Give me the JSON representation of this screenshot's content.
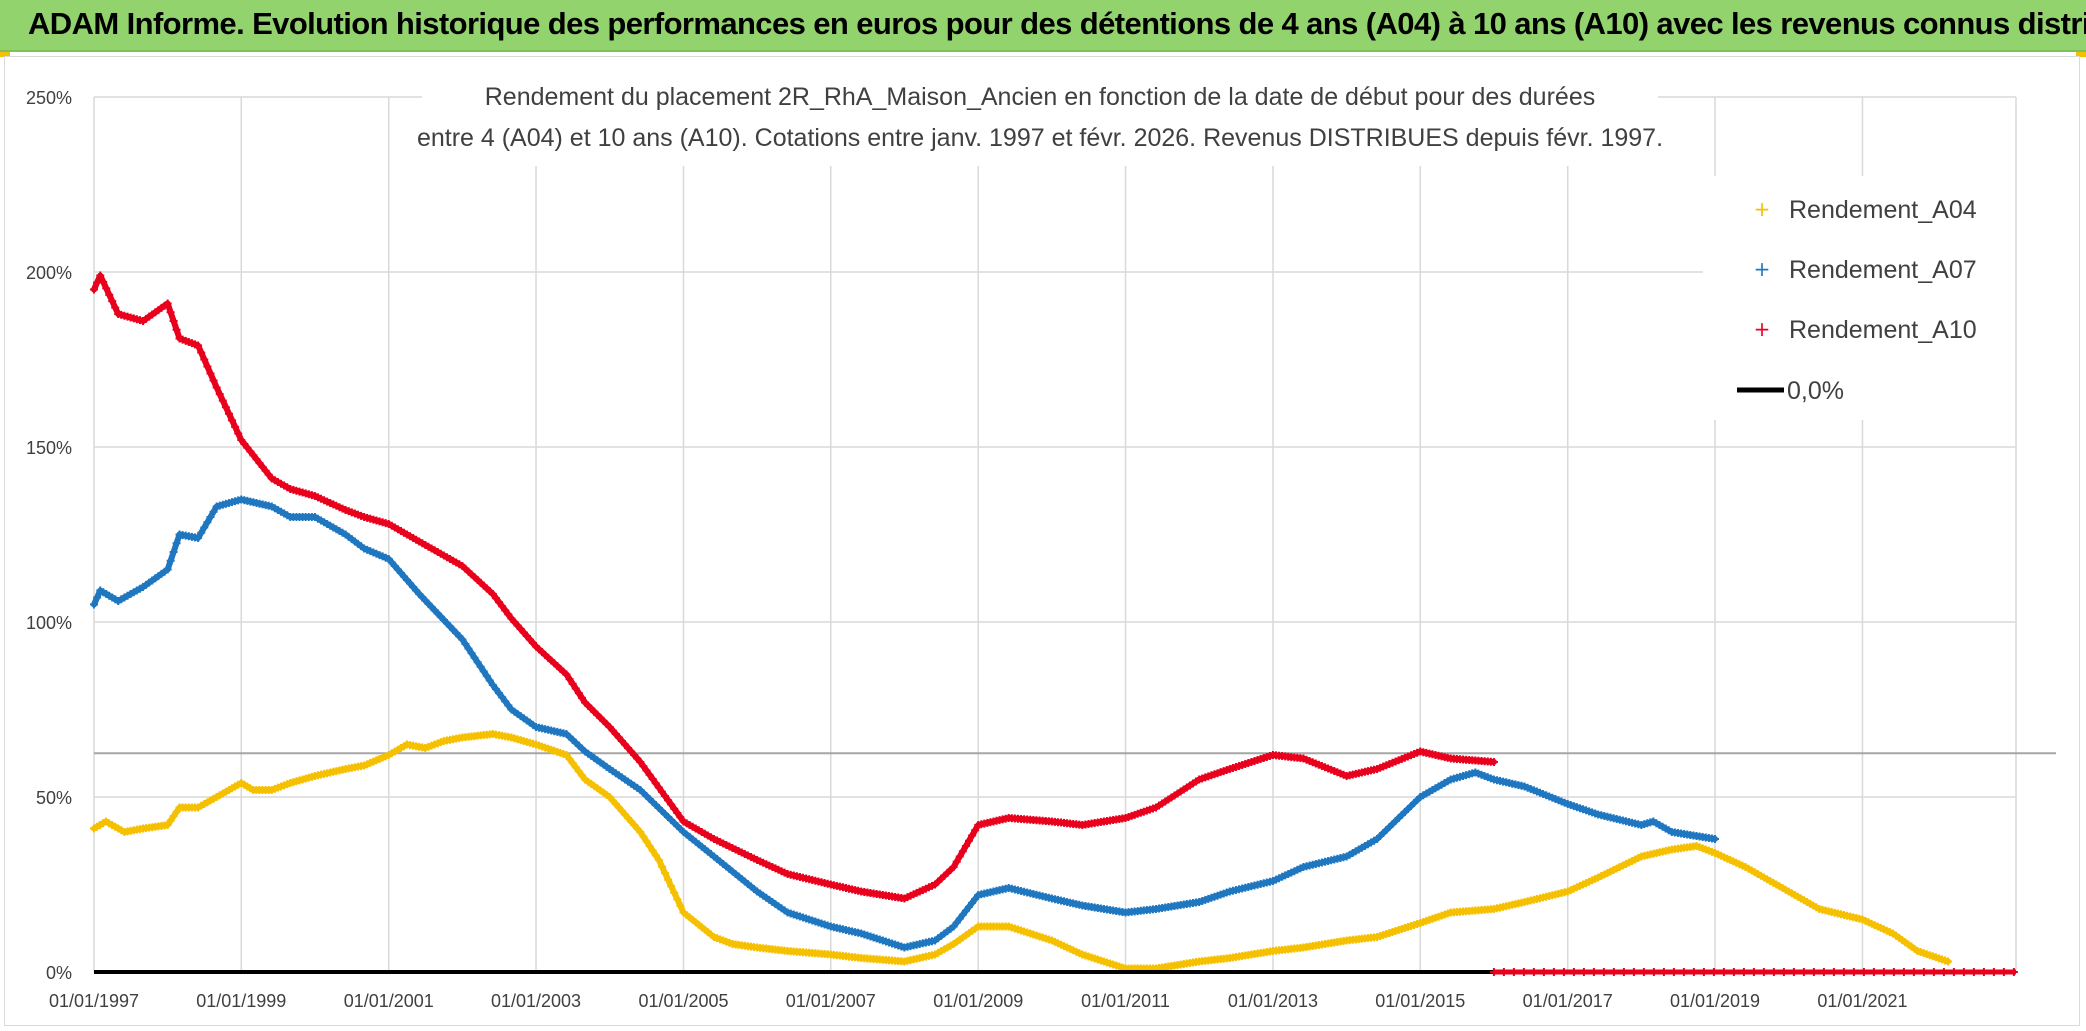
{
  "banner": {
    "title": "ADAM Informe. Evolution historique des performances en euros pour des détentions de 4 ans (A04) à 10 ans (A10) avec les revenus connus distribués",
    "background": "#92d36e"
  },
  "chart_data": {
    "type": "scatter",
    "subtitle_lines": [
      "Rendement du placement 2R_RhA_Maison_Ancien en fonction de la date de début pour des durées",
      "entre 4 (A04) et 10 ans (A10). Cotations entre janv. 1997 et févr. 2026. Revenus DISTRIBUES depuis févr. 1997."
    ],
    "x_ticks": [
      "01/01/1997",
      "01/01/1999",
      "01/01/2001",
      "01/01/2003",
      "01/01/2005",
      "01/01/2007",
      "01/01/2009",
      "01/01/2011",
      "01/01/2013",
      "01/01/2015",
      "01/01/2017",
      "01/01/2019",
      "01/01/2021"
    ],
    "y_ticks": [
      "0%",
      "50%",
      "100%",
      "150%",
      "200%",
      "250%"
    ],
    "xlim": [
      "1997-01-01",
      "2023-02-01"
    ],
    "ylim": [
      0,
      250
    ],
    "grid": true,
    "legend_position": "top-right",
    "series": [
      {
        "name": "Rendement_A04",
        "color": "#f5c000",
        "marker": "+",
        "points": [
          [
            "1997-01-01",
            41
          ],
          [
            "1997-03-01",
            43
          ],
          [
            "1997-06-01",
            40
          ],
          [
            "1997-09-01",
            41
          ],
          [
            "1998-01-01",
            42
          ],
          [
            "1998-03-01",
            47
          ],
          [
            "1998-06-01",
            47
          ],
          [
            "1998-09-01",
            50
          ],
          [
            "1999-01-01",
            54
          ],
          [
            "1999-03-01",
            52
          ],
          [
            "1999-06-01",
            52
          ],
          [
            "1999-09-01",
            54
          ],
          [
            "2000-01-01",
            56
          ],
          [
            "2000-06-01",
            58
          ],
          [
            "2000-09-01",
            59
          ],
          [
            "2001-01-01",
            62
          ],
          [
            "2001-04-01",
            65
          ],
          [
            "2001-07-01",
            64
          ],
          [
            "2001-10-01",
            66
          ],
          [
            "2002-01-01",
            67
          ],
          [
            "2002-06-01",
            68
          ],
          [
            "2002-09-01",
            67
          ],
          [
            "2003-01-01",
            65
          ],
          [
            "2003-06-01",
            62
          ],
          [
            "2003-09-01",
            55
          ],
          [
            "2004-01-01",
            50
          ],
          [
            "2004-06-01",
            40
          ],
          [
            "2004-09-01",
            32
          ],
          [
            "2005-01-01",
            17
          ],
          [
            "2005-06-01",
            10
          ],
          [
            "2005-09-01",
            8
          ],
          [
            "2006-01-01",
            7
          ],
          [
            "2006-06-01",
            6
          ],
          [
            "2007-01-01",
            5
          ],
          [
            "2007-06-01",
            4
          ],
          [
            "2008-01-01",
            3
          ],
          [
            "2008-06-01",
            5
          ],
          [
            "2008-09-01",
            8
          ],
          [
            "2009-01-01",
            13
          ],
          [
            "2009-06-01",
            13
          ],
          [
            "2010-01-01",
            9
          ],
          [
            "2010-06-01",
            5
          ],
          [
            "2011-01-01",
            1
          ],
          [
            "2011-06-01",
            1
          ],
          [
            "2012-01-01",
            3
          ],
          [
            "2012-06-01",
            4
          ],
          [
            "2013-01-01",
            6
          ],
          [
            "2013-06-01",
            7
          ],
          [
            "2014-01-01",
            9
          ],
          [
            "2014-06-01",
            10
          ],
          [
            "2015-01-01",
            14
          ],
          [
            "2015-06-01",
            17
          ],
          [
            "2016-01-01",
            18
          ],
          [
            "2016-06-01",
            20
          ],
          [
            "2017-01-01",
            23
          ],
          [
            "2017-06-01",
            27
          ],
          [
            "2018-01-01",
            33
          ],
          [
            "2018-06-01",
            35
          ],
          [
            "2018-10-01",
            36
          ],
          [
            "2019-01-01",
            34
          ],
          [
            "2019-06-01",
            30
          ],
          [
            "2020-01-01",
            23
          ],
          [
            "2020-06-01",
            18
          ],
          [
            "2021-01-01",
            15
          ],
          [
            "2021-06-01",
            11
          ],
          [
            "2021-10-01",
            6
          ],
          [
            "2022-03-01",
            3
          ]
        ]
      },
      {
        "name": "Rendement_A07",
        "color": "#1f77c0",
        "marker": "+",
        "points": [
          [
            "1997-01-01",
            105
          ],
          [
            "1997-02-01",
            109
          ],
          [
            "1997-05-01",
            106
          ],
          [
            "1997-09-01",
            110
          ],
          [
            "1998-01-01",
            115
          ],
          [
            "1998-03-01",
            125
          ],
          [
            "1998-06-01",
            124
          ],
          [
            "1998-09-01",
            133
          ],
          [
            "1999-01-01",
            135
          ],
          [
            "1999-06-01",
            133
          ],
          [
            "1999-09-01",
            130
          ],
          [
            "2000-01-01",
            130
          ],
          [
            "2000-06-01",
            125
          ],
          [
            "2000-09-01",
            121
          ],
          [
            "2001-01-01",
            118
          ],
          [
            "2001-06-01",
            108
          ],
          [
            "2002-01-01",
            95
          ],
          [
            "2002-06-01",
            82
          ],
          [
            "2002-09-01",
            75
          ],
          [
            "2003-01-01",
            70
          ],
          [
            "2003-06-01",
            68
          ],
          [
            "2003-09-01",
            63
          ],
          [
            "2004-01-01",
            58
          ],
          [
            "2004-06-01",
            52
          ],
          [
            "2005-01-01",
            40
          ],
          [
            "2005-06-01",
            33
          ],
          [
            "2006-01-01",
            23
          ],
          [
            "2006-06-01",
            17
          ],
          [
            "2007-01-01",
            13
          ],
          [
            "2007-06-01",
            11
          ],
          [
            "2008-01-01",
            7
          ],
          [
            "2008-06-01",
            9
          ],
          [
            "2008-09-01",
            13
          ],
          [
            "2009-01-01",
            22
          ],
          [
            "2009-06-01",
            24
          ],
          [
            "2010-01-01",
            21
          ],
          [
            "2010-06-01",
            19
          ],
          [
            "2011-01-01",
            17
          ],
          [
            "2011-06-01",
            18
          ],
          [
            "2012-01-01",
            20
          ],
          [
            "2012-06-01",
            23
          ],
          [
            "2013-01-01",
            26
          ],
          [
            "2013-06-01",
            30
          ],
          [
            "2014-01-01",
            33
          ],
          [
            "2014-06-01",
            38
          ],
          [
            "2015-01-01",
            50
          ],
          [
            "2015-06-01",
            55
          ],
          [
            "2015-10-01",
            57
          ],
          [
            "2016-01-01",
            55
          ],
          [
            "2016-06-01",
            53
          ],
          [
            "2017-01-01",
            48
          ],
          [
            "2017-06-01",
            45
          ],
          [
            "2018-01-01",
            42
          ],
          [
            "2018-03-01",
            43
          ],
          [
            "2018-06-01",
            40
          ],
          [
            "2019-01-01",
            38
          ]
        ]
      },
      {
        "name": "Rendement_A10",
        "color": "#e8001c",
        "marker": "+",
        "points": [
          [
            "1997-01-01",
            195
          ],
          [
            "1997-02-01",
            199
          ],
          [
            "1997-05-01",
            188
          ],
          [
            "1997-09-01",
            186
          ],
          [
            "1998-01-01",
            191
          ],
          [
            "1998-03-01",
            181
          ],
          [
            "1998-06-01",
            179
          ],
          [
            "1998-09-01",
            167
          ],
          [
            "1999-01-01",
            152
          ],
          [
            "1999-06-01",
            141
          ],
          [
            "1999-09-01",
            138
          ],
          [
            "2000-01-01",
            136
          ],
          [
            "2000-06-01",
            132
          ],
          [
            "2000-09-01",
            130
          ],
          [
            "2001-01-01",
            128
          ],
          [
            "2001-06-01",
            123
          ],
          [
            "2002-01-01",
            116
          ],
          [
            "2002-06-01",
            108
          ],
          [
            "2002-09-01",
            101
          ],
          [
            "2003-01-01",
            93
          ],
          [
            "2003-06-01",
            85
          ],
          [
            "2003-09-01",
            77
          ],
          [
            "2004-01-01",
            70
          ],
          [
            "2004-06-01",
            60
          ],
          [
            "2005-01-01",
            43
          ],
          [
            "2005-06-01",
            38
          ],
          [
            "2006-01-01",
            32
          ],
          [
            "2006-06-01",
            28
          ],
          [
            "2007-01-01",
            25
          ],
          [
            "2007-06-01",
            23
          ],
          [
            "2008-01-01",
            21
          ],
          [
            "2008-06-01",
            25
          ],
          [
            "2008-09-01",
            30
          ],
          [
            "2009-01-01",
            42
          ],
          [
            "2009-06-01",
            44
          ],
          [
            "2010-01-01",
            43
          ],
          [
            "2010-06-01",
            42
          ],
          [
            "2011-01-01",
            44
          ],
          [
            "2011-06-01",
            47
          ],
          [
            "2012-01-01",
            55
          ],
          [
            "2012-06-01",
            58
          ],
          [
            "2013-01-01",
            62
          ],
          [
            "2013-06-01",
            61
          ],
          [
            "2014-01-01",
            56
          ],
          [
            "2014-06-01",
            58
          ],
          [
            "2015-01-01",
            63
          ],
          [
            "2015-06-01",
            61
          ],
          [
            "2016-01-01",
            60
          ]
        ]
      },
      {
        "name": "0,0%",
        "color": "#000000",
        "marker": "line",
        "points": [
          [
            "1997-01-01",
            0
          ],
          [
            "2016-01-01",
            0
          ]
        ]
      }
    ],
    "red_zero_segment": [
      [
        "2016-01-01",
        0
      ],
      [
        "2023-02-01",
        0
      ]
    ],
    "reference_line_value": 62.5
  }
}
